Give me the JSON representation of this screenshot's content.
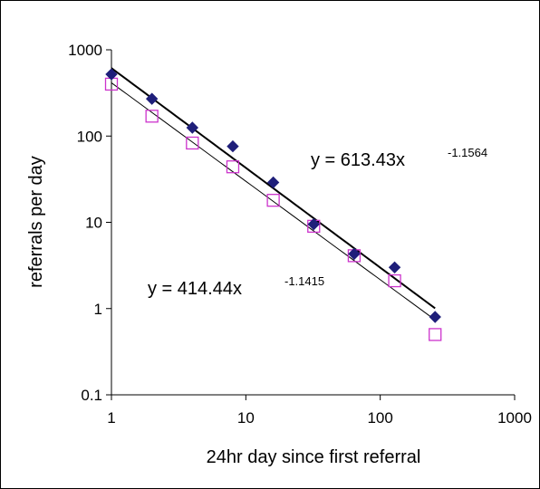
{
  "chart_data": {
    "type": "scatter",
    "xscale": "log",
    "yscale": "log",
    "xlim": [
      1,
      1000
    ],
    "ylim": [
      0.1,
      1000
    ],
    "xticks": [
      "1",
      "10",
      "100",
      "1000"
    ],
    "yticks": [
      "0.1",
      "1",
      "10",
      "100",
      "1000"
    ],
    "xlabel": "24hr day since first referral",
    "ylabel": "referrals per day",
    "grid": false,
    "series": [
      {
        "marker": "filled-diamond",
        "color": "#1f1f7a",
        "points": [
          {
            "x": 1,
            "y": 520
          },
          {
            "x": 2,
            "y": 270
          },
          {
            "x": 4,
            "y": 125
          },
          {
            "x": 8,
            "y": 76
          },
          {
            "x": 16,
            "y": 29
          },
          {
            "x": 32,
            "y": 9.5
          },
          {
            "x": 64,
            "y": 4.3
          },
          {
            "x": 128,
            "y": 3.0
          },
          {
            "x": 256,
            "y": 0.8
          }
        ],
        "trendline": {
          "a": 613.43,
          "b": -1.1564,
          "x_range": [
            1,
            256
          ],
          "equation": "y = 613.43x",
          "exponent": "-1.1564"
        }
      },
      {
        "marker": "open-square",
        "color": "#cc33cc",
        "points": [
          {
            "x": 1,
            "y": 400
          },
          {
            "x": 2,
            "y": 170
          },
          {
            "x": 4,
            "y": 83
          },
          {
            "x": 8,
            "y": 44
          },
          {
            "x": 16,
            "y": 18
          },
          {
            "x": 32,
            "y": 9.0
          },
          {
            "x": 64,
            "y": 4.1
          },
          {
            "x": 128,
            "y": 2.1
          },
          {
            "x": 256,
            "y": 0.5
          }
        ],
        "trendline": {
          "a": 414.44,
          "b": -1.1415,
          "x_range": [
            1,
            256
          ],
          "equation": "y = 414.44x",
          "exponent": "-1.1415"
        }
      }
    ]
  }
}
